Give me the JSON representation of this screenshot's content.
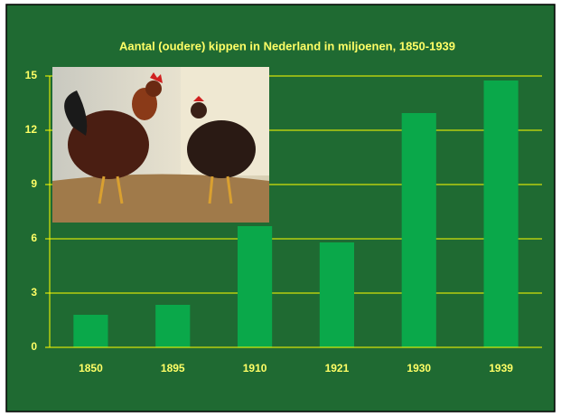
{
  "chart_data": {
    "type": "bar",
    "title": "Aantal (oudere) kippen in Nederland in miljoenen, 1850-1939",
    "categories": [
      "1850",
      "1895",
      "1910",
      "1921",
      "1930",
      "1939"
    ],
    "values": [
      1.8,
      2.35,
      6.7,
      5.8,
      12.95,
      14.75
    ],
    "color": "#0aa84a",
    "ylim": [
      0,
      15
    ],
    "yticks": [
      0,
      3,
      6,
      9,
      12,
      15
    ],
    "grid": true
  }
}
